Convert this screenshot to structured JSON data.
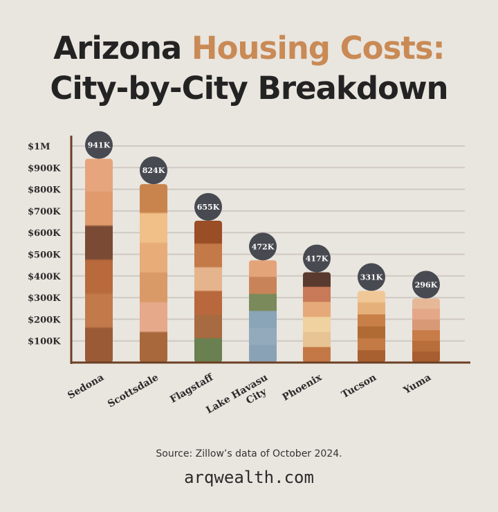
{
  "title": {
    "part1": "Arizona ",
    "part2": "Housing Costs:",
    "line2": "City-by-City Breakdown"
  },
  "colors": {
    "background": "#e9e5df",
    "accent": "#c98a55",
    "title": "#232323",
    "bubble": "#474a50",
    "axis": "#6b3f24",
    "grid": "#cfc9c2"
  },
  "chart_data": {
    "type": "bar",
    "categories": [
      "Sedona",
      "Scottsdale",
      "Flagstaff",
      "Lake Havasu City",
      "Phoenix",
      "Tucson",
      "Yuma"
    ],
    "category_lines": [
      [
        "Sedona"
      ],
      [
        "Scottsdale"
      ],
      [
        "Flagstaff"
      ],
      [
        "Lake Havasu",
        "City"
      ],
      [
        "Phoenix"
      ],
      [
        "Tucson"
      ],
      [
        "Yuma"
      ]
    ],
    "values": [
      941,
      824,
      655,
      472,
      417,
      331,
      296
    ],
    "data_labels": [
      "941K",
      "824K",
      "655K",
      "472K",
      "417K",
      "331K",
      "296K"
    ],
    "units": "thousands USD",
    "ylim": [
      0,
      1000
    ],
    "yticks": [
      100,
      200,
      300,
      400,
      500,
      600,
      700,
      800,
      900,
      1000
    ],
    "ytick_labels": [
      "$100K",
      "$200K",
      "$300K",
      "$400K",
      "$500K",
      "$600K",
      "$700K",
      "$800K",
      "$900K",
      "$1M"
    ],
    "grid": true,
    "bar_palettes": [
      [
        "#e6a57c",
        "#e09a6c",
        "#7a4a34",
        "#b86a3c",
        "#c27a4a",
        "#9a5a36"
      ],
      [
        "#c8844c",
        "#f0c088",
        "#e8ac78",
        "#d99a68",
        "#e6a98a",
        "#a8683c"
      ],
      [
        "#9a4e26",
        "#c47a48",
        "#e6b48c",
        "#b8683c",
        "#a86a40",
        "#6a8050"
      ],
      [
        "#e4a47a",
        "#c88458",
        "#7a8a5a",
        "#8aa4b8",
        "#92aabc",
        "#8aa2b6"
      ],
      [
        "#5a3a2e",
        "#c87a58",
        "#e6aa7a",
        "#f0d2a0",
        "#e8c494",
        "#c47846"
      ],
      [
        "#f0c898",
        "#e6b07a",
        "#c88048",
        "#b06a34",
        "#c47a44",
        "#a86030"
      ],
      [
        "#e6b898",
        "#e4a888",
        "#d89a76",
        "#c87c48",
        "#b86e3a",
        "#a85e30"
      ]
    ]
  },
  "footer": {
    "source": "Source: Zillow’s data of October 2024.",
    "site": "arqwealth.com"
  }
}
